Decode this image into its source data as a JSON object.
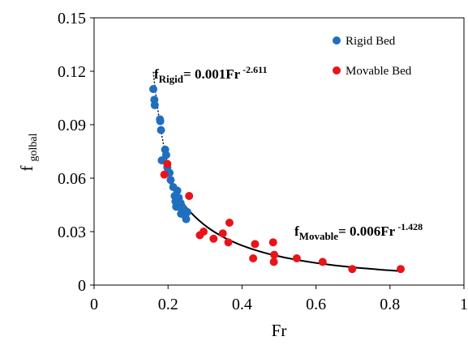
{
  "chart_data": {
    "type": "scatter",
    "xlabel": "Fr",
    "ylabel_main": "f",
    "ylabel_sub": "golbal",
    "xlim": [
      0,
      1
    ],
    "ylim": [
      0,
      0.15
    ],
    "x_ticks": [
      0,
      0.2,
      0.4,
      0.6,
      0.8,
      1
    ],
    "x_tick_labels": [
      "0",
      "0.2",
      "0.4",
      "0.6",
      "0.8",
      "1"
    ],
    "y_ticks": [
      0,
      0.03,
      0.06,
      0.09,
      0.12,
      0.15
    ],
    "y_tick_labels": [
      "0",
      "0.03",
      "0.06",
      "0.09",
      "0.12",
      "0.15"
    ],
    "grid": false,
    "legend_position": "top-right",
    "series": [
      {
        "name": "Rigid Bed",
        "color": "#1f6fbf",
        "points": [
          [
            0.16,
            0.11
          ],
          [
            0.163,
            0.104
          ],
          [
            0.164,
            0.101
          ],
          [
            0.178,
            0.093
          ],
          [
            0.179,
            0.092
          ],
          [
            0.181,
            0.087
          ],
          [
            0.183,
            0.07
          ],
          [
            0.192,
            0.076
          ],
          [
            0.195,
            0.073
          ],
          [
            0.198,
            0.066
          ],
          [
            0.204,
            0.063
          ],
          [
            0.207,
            0.059
          ],
          [
            0.214,
            0.055
          ],
          [
            0.218,
            0.05
          ],
          [
            0.22,
            0.047
          ],
          [
            0.222,
            0.044
          ],
          [
            0.225,
            0.053
          ],
          [
            0.229,
            0.049
          ],
          [
            0.234,
            0.046
          ],
          [
            0.235,
            0.04
          ],
          [
            0.241,
            0.043
          ],
          [
            0.246,
            0.039
          ],
          [
            0.249,
            0.037
          ],
          [
            0.252,
            0.041
          ],
          [
            0.228,
            0.044
          ]
        ]
      },
      {
        "name": "Movable Bed",
        "color": "#e8141a",
        "points": [
          [
            0.19,
            0.062
          ],
          [
            0.198,
            0.068
          ],
          [
            0.257,
            0.05
          ],
          [
            0.286,
            0.028
          ],
          [
            0.296,
            0.03
          ],
          [
            0.323,
            0.026
          ],
          [
            0.348,
            0.029
          ],
          [
            0.363,
            0.024
          ],
          [
            0.366,
            0.035
          ],
          [
            0.43,
            0.015
          ],
          [
            0.435,
            0.023
          ],
          [
            0.484,
            0.024
          ],
          [
            0.486,
            0.013
          ],
          [
            0.487,
            0.017
          ],
          [
            0.548,
            0.015
          ],
          [
            0.618,
            0.013
          ],
          [
            0.698,
            0.009
          ],
          [
            0.829,
            0.009
          ]
        ]
      }
    ],
    "fits": [
      {
        "name": "Rigid fit",
        "style": "dotted",
        "a": 0.001,
        "b": -2.611,
        "x_range": [
          0.16,
          0.25
        ]
      },
      {
        "name": "Movable fit",
        "style": "solid",
        "a": 0.006,
        "b": -1.428,
        "x_range": [
          0.2,
          0.83
        ]
      }
    ],
    "annotations": {
      "rigid": {
        "f": "f",
        "sub": "Rigid",
        "eq": "= 0.001Fr",
        "exp": "-2.611"
      },
      "movable": {
        "f": "f",
        "sub": "Movable",
        "eq": "= 0.006Fr",
        "exp": "-1.428"
      }
    }
  }
}
